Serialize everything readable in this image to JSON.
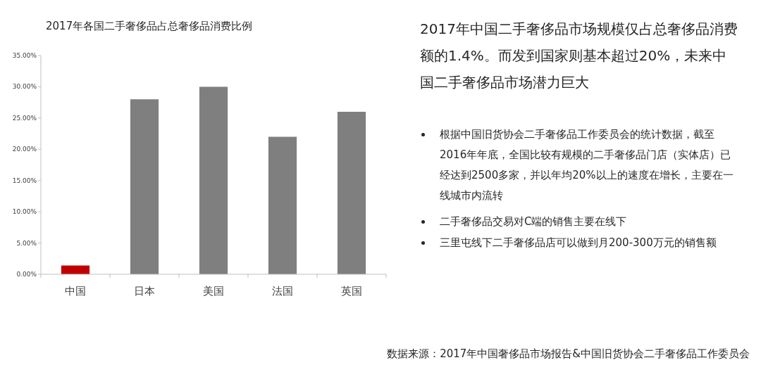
{
  "chart_data": {
    "type": "bar",
    "title": "2017年各国二手奢侈品占总奢侈品消费比例",
    "categories": [
      "中国",
      "日本",
      "美国",
      "法国",
      "英国"
    ],
    "values": [
      1.4,
      28,
      30,
      22,
      26
    ],
    "colors": [
      "#c00000",
      "#7f7f7f",
      "#7f7f7f",
      "#7f7f7f",
      "#7f7f7f"
    ],
    "ylim": [
      0,
      35
    ],
    "yticks": [
      {
        "value": 0,
        "label": "0.00%"
      },
      {
        "value": 5,
        "label": "5.00%"
      },
      {
        "value": 10,
        "label": "10.00%"
      },
      {
        "value": 15,
        "label": "15.00%"
      },
      {
        "value": 20,
        "label": "20.00%"
      },
      {
        "value": 25,
        "label": "25.00%"
      },
      {
        "value": 30,
        "label": "30.00%"
      },
      {
        "value": 35,
        "label": "35.00%"
      }
    ],
    "annotations": [
      "2017年中国二手奢侈品市场规模仅占总奢侈品消费额的1.4%。而发到国家则基本超过20%，未来中国二手奢侈品市场潜力巨大",
      "根据中国旧货协会二手奢侈品工作委员会的统计数据，截至2016年年底，全国比较有规模的二手奢侈品门店（实体店）已经达到2500多家，并以年均20%以上的速度在增长，主要在一线城市内流转",
      "二手奢侈品交易对C端的销售主要在线下",
      "三里屯线下二手奢侈品店可以做到月200-300万元的销售额",
      "数据来源：2017年中国奢侈品市场报告&中国旧货协会二手奢侈品工作委员会"
    ]
  }
}
